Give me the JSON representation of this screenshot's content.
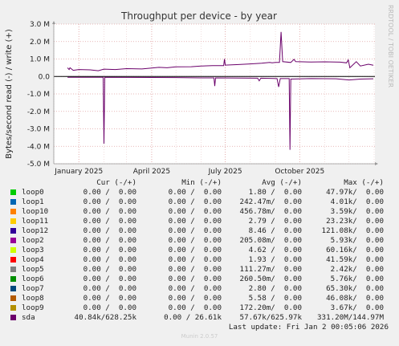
{
  "chart_data": {
    "type": "line",
    "title": "Throughput per device - by year",
    "ylabel": "Bytes/second read (-) / write (+)",
    "ylim": [
      -5000000,
      3000000
    ],
    "y_ticks": [
      {
        "value": 3000000,
        "label": "3.0 M"
      },
      {
        "value": 2000000,
        "label": "2.0 M"
      },
      {
        "value": 1000000,
        "label": "1.0 M"
      },
      {
        "value": 0,
        "label": "0.0"
      },
      {
        "value": -1000000,
        "label": "-1.0 M"
      },
      {
        "value": -2000000,
        "label": "-2.0 M"
      },
      {
        "value": -3000000,
        "label": "-3.0 M"
      },
      {
        "value": -4000000,
        "label": "-4.0 M"
      },
      {
        "value": -5000000,
        "label": "-5.0 M"
      }
    ],
    "xlim": [
      "2024-12-01",
      "2026-01-02"
    ],
    "x_ticks": [
      {
        "date": "2025-01-01",
        "label": "January 2025"
      },
      {
        "date": "2025-04-01",
        "label": "April 2025"
      },
      {
        "date": "2025-07-01",
        "label": "July 2025"
      },
      {
        "date": "2025-10-01",
        "label": "October 2025"
      }
    ],
    "grid": true,
    "series": [
      {
        "name": "sda",
        "color": "#6a006a",
        "write": [
          [
            "2024-12-18",
            500000
          ],
          [
            "2024-12-20",
            400000
          ],
          [
            "2024-12-21",
            500000
          ],
          [
            "2024-12-25",
            350000
          ],
          [
            "2025-01-01",
            400000
          ],
          [
            "2025-01-15",
            380000
          ],
          [
            "2025-01-25",
            330000
          ],
          [
            "2025-02-01",
            420000
          ],
          [
            "2025-02-15",
            400000
          ],
          [
            "2025-03-01",
            450000
          ],
          [
            "2025-03-20",
            430000
          ],
          [
            "2025-04-01",
            480000
          ],
          [
            "2025-04-10",
            520000
          ],
          [
            "2025-04-20",
            500000
          ],
          [
            "2025-05-01",
            550000
          ],
          [
            "2025-05-20",
            560000
          ],
          [
            "2025-06-01",
            600000
          ],
          [
            "2025-06-15",
            620000
          ],
          [
            "2025-06-29",
            620000
          ],
          [
            "2025-06-30",
            1000000
          ],
          [
            "2025-07-01",
            650000
          ],
          [
            "2025-07-15",
            680000
          ],
          [
            "2025-08-01",
            720000
          ],
          [
            "2025-08-15",
            760000
          ],
          [
            "2025-08-25",
            800000
          ],
          [
            "2025-08-28",
            780000
          ],
          [
            "2025-09-01",
            800000
          ],
          [
            "2025-09-06",
            800000
          ],
          [
            "2025-09-08",
            2550000
          ],
          [
            "2025-09-10",
            850000
          ],
          [
            "2025-09-20",
            800000
          ],
          [
            "2025-09-24",
            980000
          ],
          [
            "2025-09-26",
            850000
          ],
          [
            "2025-10-15",
            830000
          ],
          [
            "2025-11-01",
            840000
          ],
          [
            "2025-11-20",
            820000
          ],
          [
            "2025-11-28",
            780000
          ],
          [
            "2025-11-30",
            950000
          ],
          [
            "2025-12-02",
            500000
          ],
          [
            "2025-12-10",
            850000
          ],
          [
            "2025-12-15",
            600000
          ],
          [
            "2025-12-25",
            700000
          ],
          [
            "2025-12-31",
            640000
          ]
        ],
        "read": [
          [
            "2024-12-18",
            -50000
          ],
          [
            "2025-01-31",
            -50000
          ],
          [
            "2025-02-01",
            -3850000
          ],
          [
            "2025-02-02",
            -50000
          ],
          [
            "2025-05-01",
            -60000
          ],
          [
            "2025-06-01",
            -80000
          ],
          [
            "2025-06-17",
            -80000
          ],
          [
            "2025-06-18",
            -550000
          ],
          [
            "2025-06-19",
            -80000
          ],
          [
            "2025-08-10",
            -100000
          ],
          [
            "2025-08-12",
            -250000
          ],
          [
            "2025-08-14",
            -100000
          ],
          [
            "2025-09-03",
            -120000
          ],
          [
            "2025-09-05",
            -600000
          ],
          [
            "2025-09-07",
            -120000
          ],
          [
            "2025-09-18",
            -120000
          ],
          [
            "2025-09-19",
            -4200000
          ],
          [
            "2025-09-20",
            -150000
          ],
          [
            "2025-10-15",
            -120000
          ],
          [
            "2025-11-15",
            -130000
          ],
          [
            "2025-12-01",
            -200000
          ],
          [
            "2025-12-15",
            -150000
          ],
          [
            "2025-12-31",
            -130000
          ]
        ]
      }
    ]
  },
  "sidebar_text": "RRDTOOL / TOBI OETIKER",
  "legend": {
    "headers": {
      "cur": "Cur (-/+)",
      "min": "Min (-/+)",
      "avg": "Avg (-/+)",
      "max": "Max (-/+)"
    },
    "rows": [
      {
        "name": "loop0",
        "color": "#00cc00",
        "cur": "0.00 /  0.00",
        "min": "0.00 /  0.00",
        "avg": "1.80 /  0.00",
        "max": "47.97k/  0.00"
      },
      {
        "name": "loop1",
        "color": "#0066b3",
        "cur": "0.00 /  0.00",
        "min": "0.00 /  0.00",
        "avg": "242.47m/  0.00",
        "max": "4.01k/  0.00"
      },
      {
        "name": "loop10",
        "color": "#ff8000",
        "cur": "0.00 /  0.00",
        "min": "0.00 /  0.00",
        "avg": "456.78m/  0.00",
        "max": "3.59k/  0.00"
      },
      {
        "name": "loop11",
        "color": "#ffcc00",
        "cur": "0.00 /  0.00",
        "min": "0.00 /  0.00",
        "avg": "2.79 /  0.00",
        "max": "23.23k/  0.00"
      },
      {
        "name": "loop12",
        "color": "#330099",
        "cur": "0.00 /  0.00",
        "min": "0.00 /  0.00",
        "avg": "8.46 /  0.00",
        "max": "121.08k/  0.00"
      },
      {
        "name": "loop2",
        "color": "#990099",
        "cur": "0.00 /  0.00",
        "min": "0.00 /  0.00",
        "avg": "205.08m/  0.00",
        "max": "5.93k/  0.00"
      },
      {
        "name": "loop3",
        "color": "#ccff00",
        "cur": "0.00 /  0.00",
        "min": "0.00 /  0.00",
        "avg": "4.62 /  0.00",
        "max": "60.16k/  0.00"
      },
      {
        "name": "loop4",
        "color": "#ff0000",
        "cur": "0.00 /  0.00",
        "min": "0.00 /  0.00",
        "avg": "1.93 /  0.00",
        "max": "41.59k/  0.00"
      },
      {
        "name": "loop5",
        "color": "#808080",
        "cur": "0.00 /  0.00",
        "min": "0.00 /  0.00",
        "avg": "111.27m/  0.00",
        "max": "2.42k/  0.00"
      },
      {
        "name": "loop6",
        "color": "#008f00",
        "cur": "0.00 /  0.00",
        "min": "0.00 /  0.00",
        "avg": "260.50m/  0.00",
        "max": "5.76k/  0.00"
      },
      {
        "name": "loop7",
        "color": "#00487d",
        "cur": "0.00 /  0.00",
        "min": "0.00 /  0.00",
        "avg": "2.80 /  0.00",
        "max": "65.30k/  0.00"
      },
      {
        "name": "loop8",
        "color": "#b35a00",
        "cur": "0.00 /  0.00",
        "min": "0.00 /  0.00",
        "avg": "5.58 /  0.00",
        "max": "46.08k/  0.00"
      },
      {
        "name": "loop9",
        "color": "#b38f00",
        "cur": "0.00 /  0.00",
        "min": "0.00 /  0.00",
        "avg": "172.20m/  0.00",
        "max": "3.67k/  0.00"
      },
      {
        "name": "sda",
        "color": "#6b006b",
        "cur": "40.84k/628.25k",
        "min": "0.00 / 26.61k",
        "avg": "57.67k/625.97k",
        "max": "331.20M/144.97M"
      }
    ]
  },
  "last_update": "Last update: Fri Jan  2 00:05:06 2026",
  "munin_version": "Munin 2.0.57"
}
